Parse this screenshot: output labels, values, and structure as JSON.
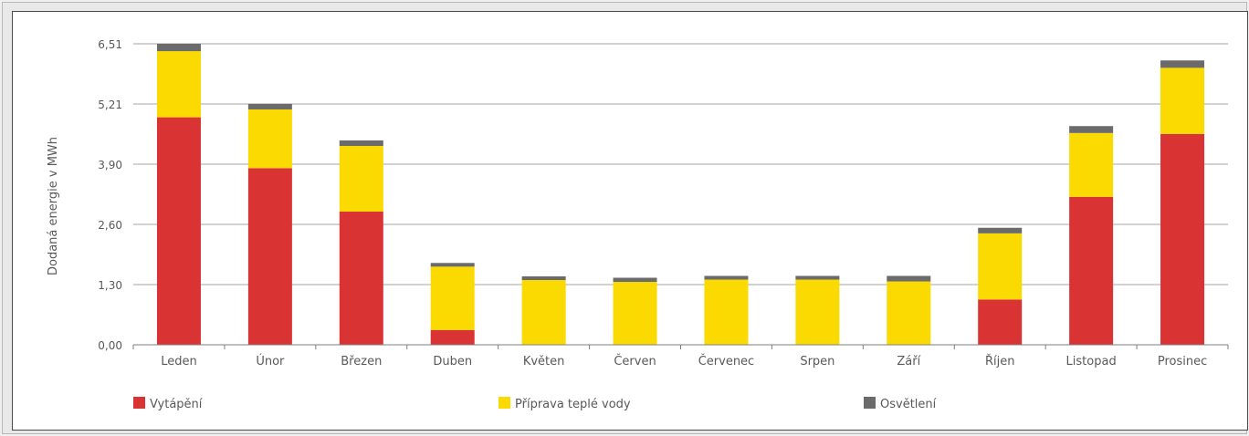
{
  "chart_data": {
    "type": "bar",
    "stacked": true,
    "ylabel": "Dodaná energie v MWh",
    "xlabel": "",
    "ylim": [
      0,
      6.51
    ],
    "yticks": [
      "0,00",
      "1,30",
      "2,60",
      "3,90",
      "5,21",
      "6,51"
    ],
    "ytick_values": [
      0,
      1.302,
      2.604,
      3.906,
      5.208,
      6.51
    ],
    "grid": true,
    "legend_position": "bottom",
    "categories": [
      "Leden",
      "Únor",
      "Březen",
      "Duben",
      "Květen",
      "Červen",
      "Červenec",
      "Srpen",
      "Září",
      "Říjen",
      "Listopad",
      "Prosinec"
    ],
    "series": [
      {
        "name": "Vytápění",
        "color": "#d93333",
        "values": [
          4.92,
          3.82,
          2.88,
          0.32,
          0,
          0,
          0,
          0,
          0,
          0.98,
          3.2,
          4.56
        ]
      },
      {
        "name": "Příprava teplé vody",
        "color": "#fada00",
        "values": [
          1.43,
          1.27,
          1.42,
          1.37,
          1.4,
          1.36,
          1.41,
          1.41,
          1.37,
          1.43,
          1.38,
          1.43
        ]
      },
      {
        "name": "Osvětlení",
        "color": "#6b6b6b",
        "values": [
          0.16,
          0.12,
          0.12,
          0.08,
          0.08,
          0.09,
          0.08,
          0.08,
          0.12,
          0.12,
          0.15,
          0.16
        ]
      }
    ]
  }
}
